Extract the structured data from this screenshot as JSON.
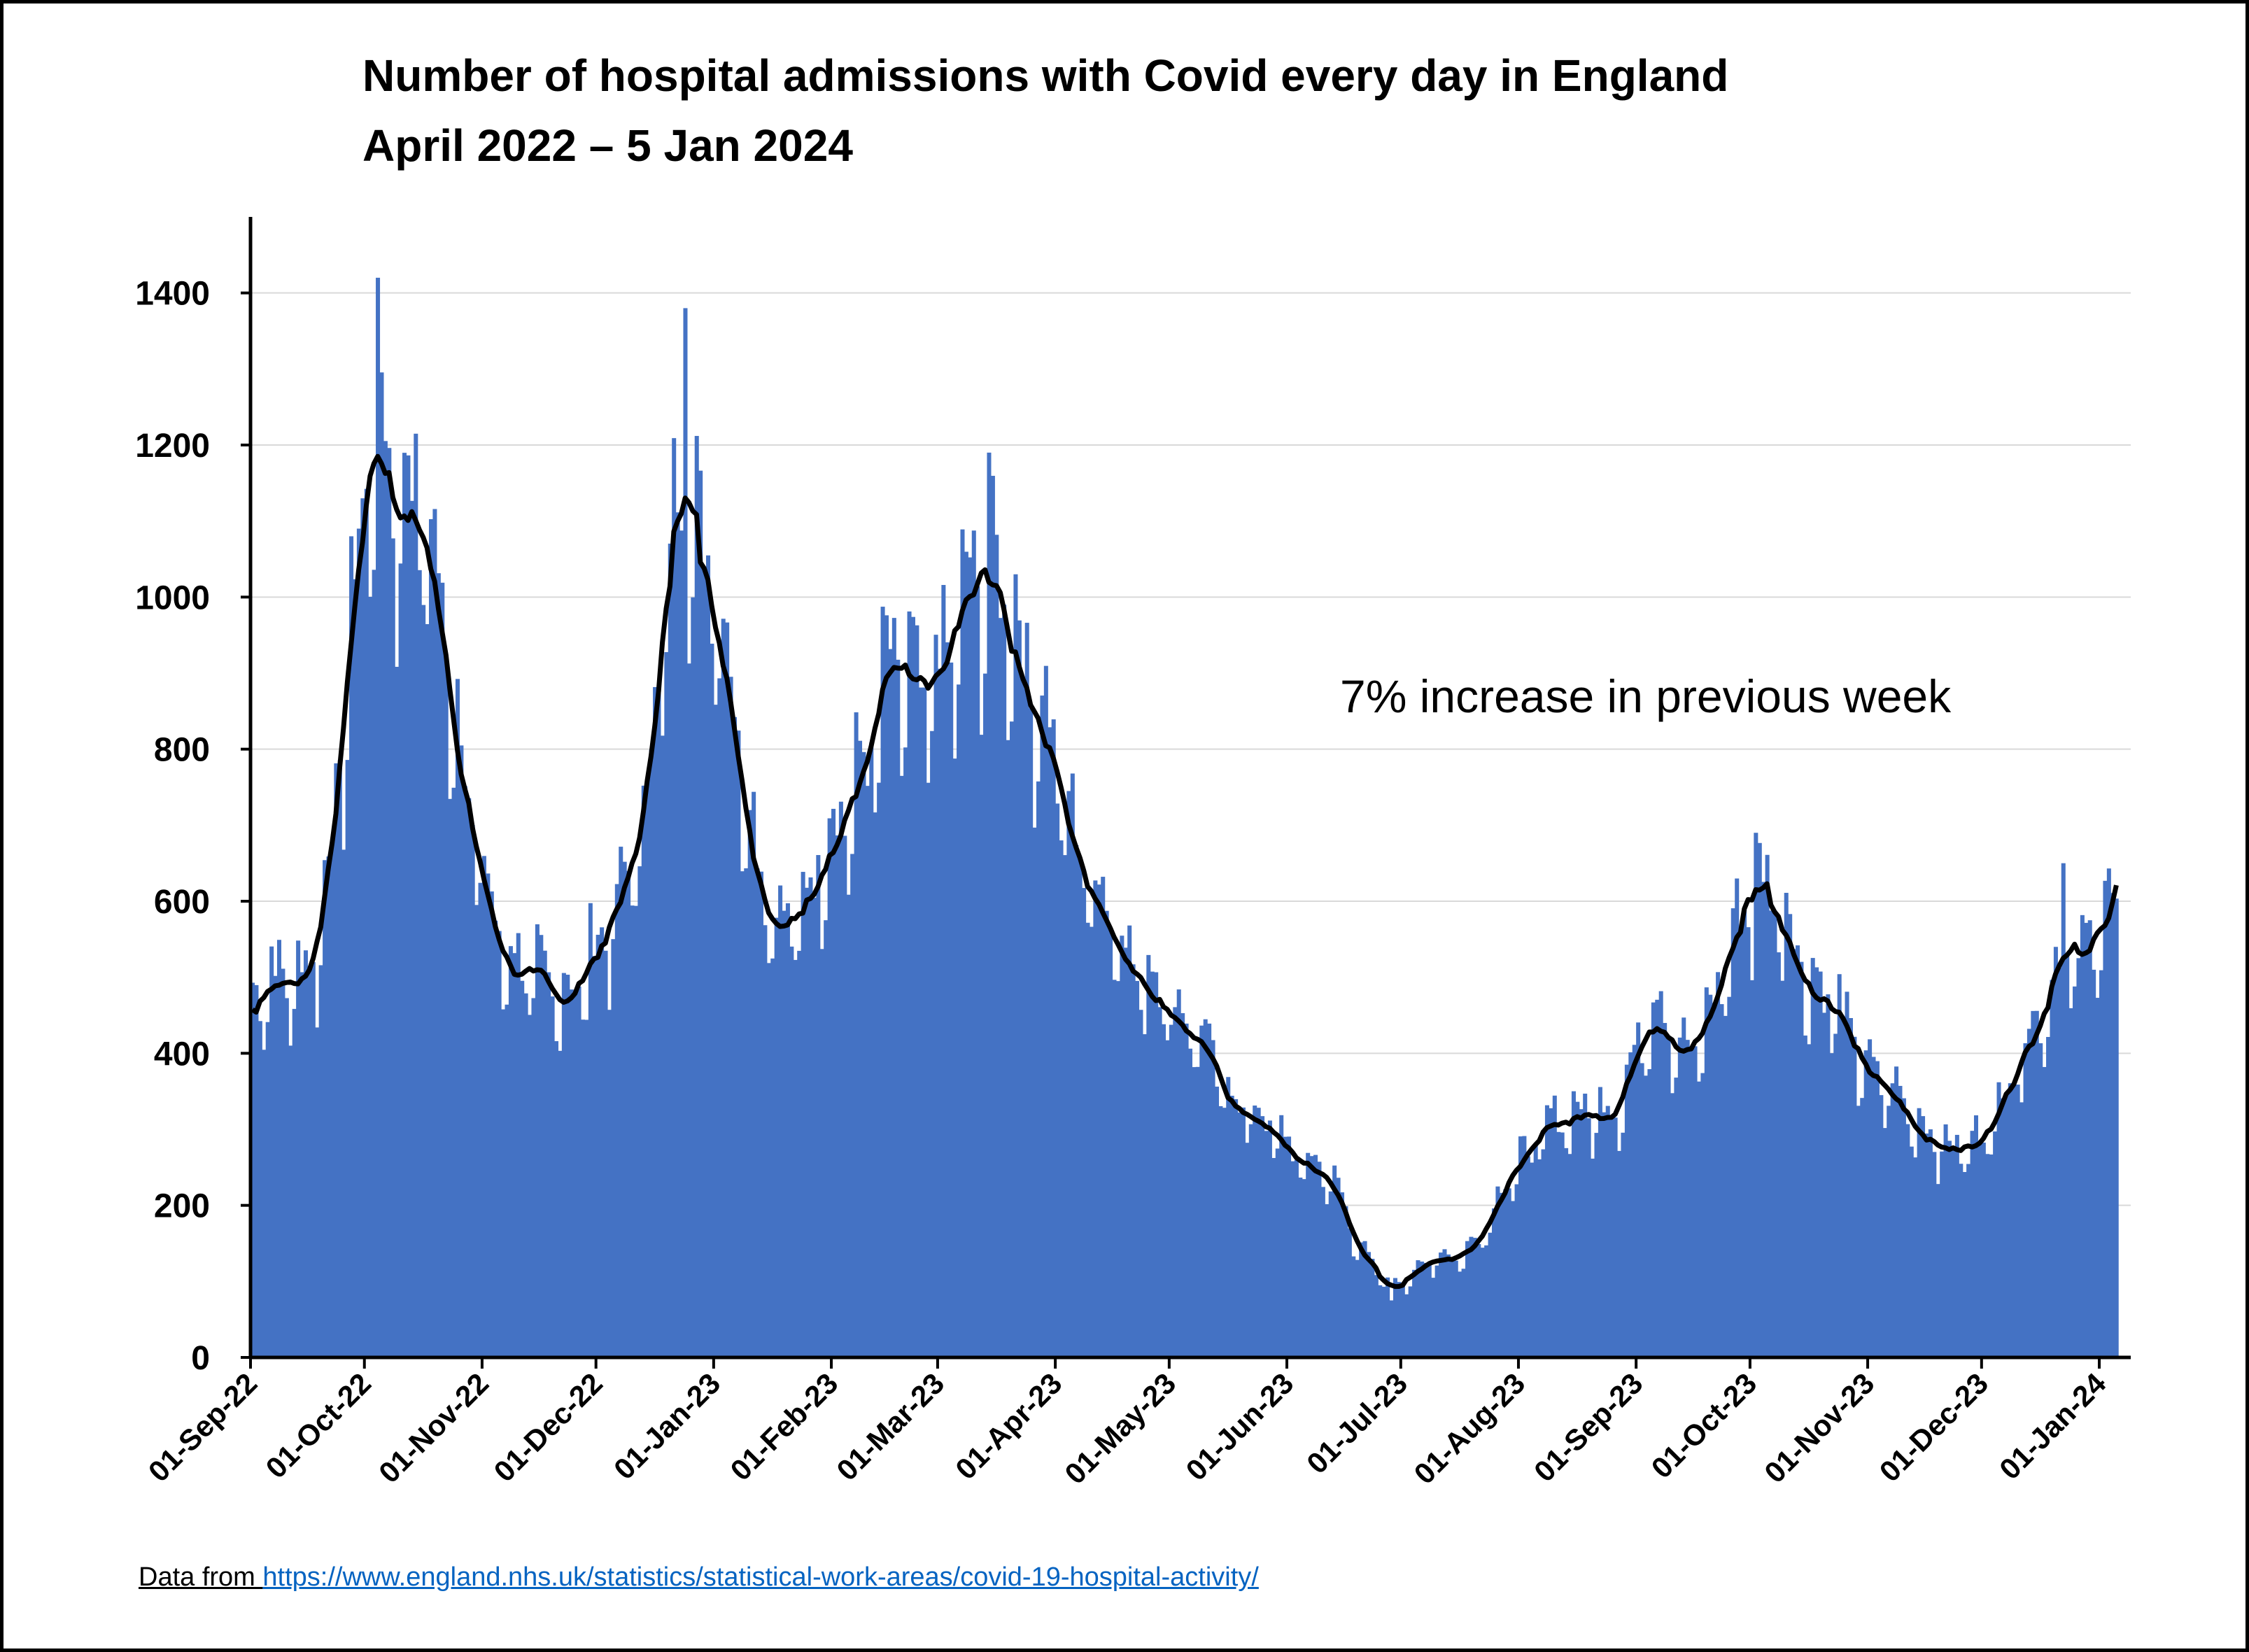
{
  "chart_data": {
    "type": "bar",
    "title": "Number of hospital admissions with Covid every day in England",
    "subtitle": "April 2022 – 5 Jan 2024",
    "xlabel": "",
    "ylabel": "",
    "ylim": [
      0,
      1500
    ],
    "yticks": [
      0,
      200,
      400,
      600,
      800,
      1000,
      1200,
      1400
    ],
    "grid": true,
    "legend": "none",
    "x_range": [
      "2022-09-01",
      "2024-01-05"
    ],
    "x_tick_labels": [
      "01-Sep-22",
      "01-Oct-22",
      "01-Nov-22",
      "01-Dec-22",
      "01-Jan-23",
      "01-Feb-23",
      "01-Mar-23",
      "01-Apr-23",
      "01-May-23",
      "01-Jun-23",
      "01-Jul-23",
      "01-Aug-23",
      "01-Sep-23",
      "01-Oct-23",
      "01-Nov-23",
      "01-Dec-23",
      "01-Jan-24"
    ],
    "x_tick_dates": [
      "2022-09-01",
      "2022-10-01",
      "2022-11-01",
      "2022-12-01",
      "2023-01-01",
      "2023-02-01",
      "2023-03-01",
      "2023-04-01",
      "2023-05-01",
      "2023-06-01",
      "2023-07-01",
      "2023-08-01",
      "2023-09-01",
      "2023-10-01",
      "2023-11-01",
      "2023-12-01",
      "2024-01-01"
    ],
    "series": [
      {
        "kind": "bar",
        "color": "#4472c4",
        "weekly_pattern": "values on Sunday and Monday are lower, mid-week values higher",
        "anchors": [
          [
            "2022-09-01",
            470
          ],
          [
            "2022-09-06",
            500
          ],
          [
            "2022-09-12",
            490
          ],
          [
            "2022-09-18",
            530
          ],
          [
            "2022-09-24",
            760
          ],
          [
            "2022-09-28",
            1000
          ],
          [
            "2022-10-02",
            1200
          ],
          [
            "2022-10-05",
            1220
          ],
          [
            "2022-10-09",
            1110
          ],
          [
            "2022-10-13",
            1140
          ],
          [
            "2022-10-18",
            1060
          ],
          [
            "2022-10-23",
            900
          ],
          [
            "2022-10-28",
            730
          ],
          [
            "2022-11-02",
            600
          ],
          [
            "2022-11-07",
            520
          ],
          [
            "2022-11-12",
            510
          ],
          [
            "2022-11-18",
            480
          ],
          [
            "2022-11-25",
            480
          ],
          [
            "2022-12-01",
            540
          ],
          [
            "2022-12-06",
            580
          ],
          [
            "2022-12-12",
            680
          ],
          [
            "2022-12-17",
            880
          ],
          [
            "2022-12-21",
            1080
          ],
          [
            "2022-12-24",
            1170
          ],
          [
            "2022-12-28",
            1040
          ],
          [
            "2023-01-01",
            1030
          ],
          [
            "2023-01-06",
            850
          ],
          [
            "2023-01-12",
            650
          ],
          [
            "2023-01-18",
            560
          ],
          [
            "2023-01-24",
            580
          ],
          [
            "2023-01-30",
            680
          ],
          [
            "2023-02-05",
            720
          ],
          [
            "2023-02-11",
            790
          ],
          [
            "2023-02-15",
            890
          ],
          [
            "2023-02-19",
            900
          ],
          [
            "2023-02-25",
            850
          ],
          [
            "2023-03-01",
            900
          ],
          [
            "2023-03-05",
            930
          ],
          [
            "2023-03-09",
            1010
          ],
          [
            "2023-03-14",
            1020
          ],
          [
            "2023-03-19",
            990
          ],
          [
            "2023-03-24",
            890
          ],
          [
            "2023-03-30",
            820
          ],
          [
            "2023-04-04",
            700
          ],
          [
            "2023-04-09",
            630
          ],
          [
            "2023-04-15",
            590
          ],
          [
            "2023-04-21",
            510
          ],
          [
            "2023-04-27",
            490
          ],
          [
            "2023-05-03",
            450
          ],
          [
            "2023-05-09",
            420
          ],
          [
            "2023-05-15",
            350
          ],
          [
            "2023-05-22",
            320
          ],
          [
            "2023-05-28",
            300
          ],
          [
            "2023-06-03",
            260
          ],
          [
            "2023-06-09",
            250
          ],
          [
            "2023-06-14",
            220
          ],
          [
            "2023-06-19",
            150
          ],
          [
            "2023-06-25",
            105
          ],
          [
            "2023-07-01",
            100
          ],
          [
            "2023-07-06",
            115
          ],
          [
            "2023-07-10",
            135
          ],
          [
            "2023-07-16",
            130
          ],
          [
            "2023-07-22",
            160
          ],
          [
            "2023-07-28",
            230
          ],
          [
            "2023-08-04",
            270
          ],
          [
            "2023-08-10",
            310
          ],
          [
            "2023-08-16",
            320
          ],
          [
            "2023-08-22",
            320
          ],
          [
            "2023-08-28",
            340
          ],
          [
            "2023-09-03",
            440
          ],
          [
            "2023-09-07",
            470
          ],
          [
            "2023-09-12",
            400
          ],
          [
            "2023-09-16",
            400
          ],
          [
            "2023-09-21",
            460
          ],
          [
            "2023-09-26",
            550
          ],
          [
            "2023-10-02",
            610
          ],
          [
            "2023-10-07",
            610
          ],
          [
            "2023-10-12",
            550
          ],
          [
            "2023-10-16",
            490
          ],
          [
            "2023-10-22",
            470
          ],
          [
            "2023-10-27",
            420
          ],
          [
            "2023-11-01",
            370
          ],
          [
            "2023-11-07",
            350
          ],
          [
            "2023-11-13",
            310
          ],
          [
            "2023-11-19",
            285
          ],
          [
            "2023-11-24",
            270
          ],
          [
            "2023-11-28",
            280
          ],
          [
            "2023-12-03",
            300
          ],
          [
            "2023-12-08",
            370
          ],
          [
            "2023-12-13",
            420
          ],
          [
            "2023-12-18",
            470
          ],
          [
            "2023-12-22",
            540
          ],
          [
            "2023-12-26",
            500
          ],
          [
            "2023-12-31",
            580
          ],
          [
            "2024-01-03",
            580
          ],
          [
            "2024-01-05",
            570
          ]
        ],
        "peaks": [
          [
            "2022-10-04",
            1420
          ],
          [
            "2022-12-24",
            1380
          ],
          [
            "2023-03-14",
            1190
          ],
          [
            "2023-06-28",
            75
          ],
          [
            "2023-10-02",
            690
          ],
          [
            "2023-12-22",
            650
          ]
        ]
      },
      {
        "kind": "line",
        "color": "#000000",
        "description": "7-day average of daily admissions"
      }
    ],
    "annotations": [
      "7% increase in previous week"
    ]
  },
  "footer": {
    "source_prefix": "Data from ",
    "source_url": "https://www.england.nhs.uk/statistics/statistical-work-areas/covid-19-hospital-activity/"
  }
}
